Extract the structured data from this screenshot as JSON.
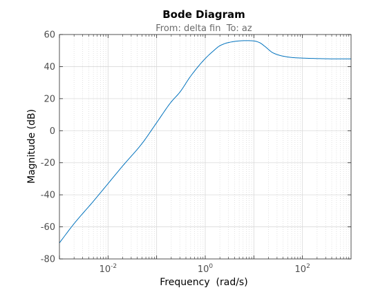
{
  "chart_data": {
    "type": "line",
    "title": "Bode Diagram",
    "subtitle": "From: delta fin  To: az",
    "xlabel": "Frequency  (rad/s)",
    "ylabel": "Magnitude (dB)",
    "x_scale": "log",
    "xlim": [
      0.001,
      1000
    ],
    "ylim": [
      -80,
      60
    ],
    "y_ticks": [
      -80,
      -60,
      -40,
      -20,
      0,
      20,
      40,
      60
    ],
    "x_ticks": [
      {
        "value": 0.01,
        "base": "10",
        "exponent": "-2"
      },
      {
        "value": 1,
        "base": "10",
        "exponent": "0"
      },
      {
        "value": 100,
        "base": "10",
        "exponent": "2"
      }
    ],
    "grid": true,
    "colors": {
      "line": "#0072bd",
      "grid": "#d9d9d9",
      "axis": "#262626"
    },
    "series": [
      {
        "x": [
          0.001,
          0.002,
          0.005,
          0.01,
          0.02,
          0.05,
          0.1,
          0.2,
          0.3,
          0.5,
          1,
          1.5,
          2,
          3,
          5,
          7,
          10,
          13,
          17,
          25,
          40,
          70,
          100,
          200,
          500,
          1000
        ],
        "values": [
          -70,
          -58,
          -44,
          -33,
          -22,
          -8,
          5,
          18,
          24,
          34,
          45,
          50,
          53,
          55,
          56,
          56.2,
          56,
          55,
          52.5,
          48.5,
          46.5,
          45.5,
          45.3,
          45,
          44.8,
          44.8
        ]
      }
    ]
  }
}
